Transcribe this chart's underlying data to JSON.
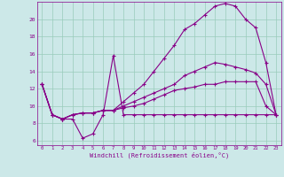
{
  "background_color": "#cce8e8",
  "grid_color": "#99ccbb",
  "line_color": "#880088",
  "xlim": [
    -0.5,
    23.5
  ],
  "ylim": [
    5.5,
    22.0
  ],
  "yticks": [
    6,
    8,
    10,
    12,
    14,
    16,
    18,
    20
  ],
  "xticks": [
    0,
    1,
    2,
    3,
    4,
    5,
    6,
    7,
    8,
    9,
    10,
    11,
    12,
    13,
    14,
    15,
    16,
    17,
    18,
    19,
    20,
    21,
    22,
    23
  ],
  "xlabel": "Windchill (Refroidissement éolien,°C)",
  "series": [
    [
      12.5,
      9.0,
      8.5,
      8.5,
      6.3,
      6.8,
      9.0,
      15.8,
      9.0,
      9.0,
      9.0,
      9.0,
      9.0,
      9.0,
      9.0,
      9.0,
      9.0,
      9.0,
      9.0,
      9.0,
      9.0,
      9.0,
      9.0,
      9.0
    ],
    [
      12.5,
      9.0,
      8.5,
      9.0,
      9.2,
      9.2,
      9.5,
      9.5,
      9.8,
      10.0,
      10.3,
      10.8,
      11.3,
      11.8,
      12.0,
      12.2,
      12.5,
      12.5,
      12.8,
      12.8,
      12.8,
      12.8,
      10.0,
      9.0
    ],
    [
      12.5,
      9.0,
      8.5,
      9.0,
      9.2,
      9.2,
      9.5,
      9.5,
      10.0,
      10.5,
      11.0,
      11.5,
      12.0,
      12.5,
      13.5,
      14.0,
      14.5,
      15.0,
      14.8,
      14.5,
      14.2,
      13.8,
      12.5,
      9.0
    ],
    [
      12.5,
      9.0,
      8.5,
      9.0,
      9.2,
      9.2,
      9.5,
      9.5,
      10.5,
      11.5,
      12.5,
      14.0,
      15.5,
      17.0,
      18.8,
      19.5,
      20.5,
      21.5,
      21.8,
      21.5,
      20.0,
      19.0,
      15.0,
      9.0
    ]
  ]
}
